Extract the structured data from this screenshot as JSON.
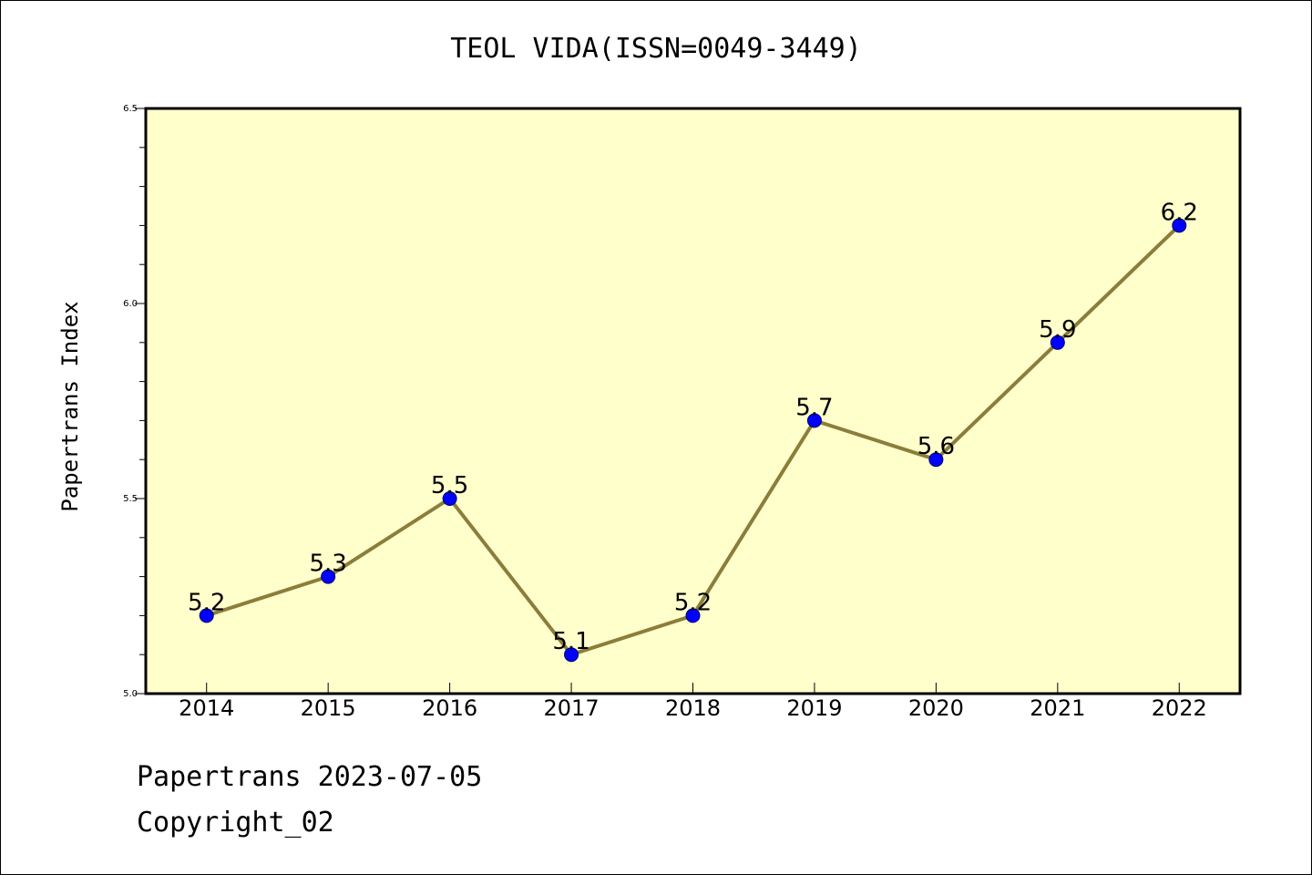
{
  "footer": {
    "line1": "Papertrans 2023-07-05",
    "line2": "Copyright_02"
  },
  "chart_data": {
    "type": "line",
    "title": "TEOL VIDA(ISSN=0049-3449)",
    "xlabel": "",
    "ylabel": "Papertrans Index",
    "categories": [
      "2014",
      "2015",
      "2016",
      "2017",
      "2018",
      "2019",
      "2020",
      "2021",
      "2022"
    ],
    "values": [
      5.2,
      5.3,
      5.5,
      5.1,
      5.2,
      5.7,
      5.6,
      5.9,
      6.2
    ],
    "data_labels": [
      "5.2",
      "5.3",
      "5.5",
      "5.1",
      "5.2",
      "5.7",
      "5.6",
      "5.9",
      "6.2"
    ],
    "ylim": [
      5.0,
      6.5
    ],
    "yticks": [
      "5.0",
      "5.5",
      "6.0",
      "6.5"
    ],
    "grid": false,
    "colors": {
      "plot_background": "#ffffcc",
      "line": "#8b7d3a",
      "marker": "#0000ff"
    }
  }
}
